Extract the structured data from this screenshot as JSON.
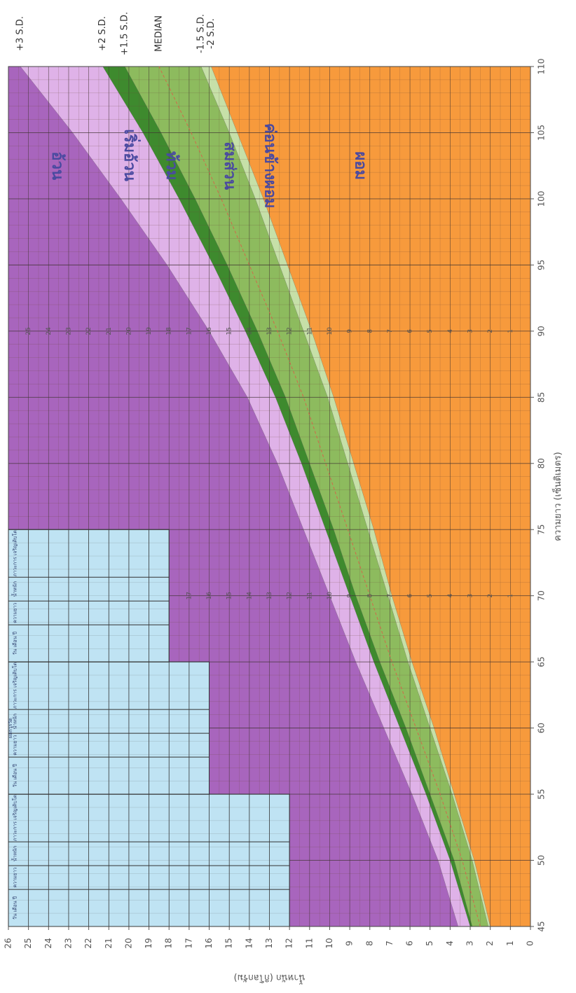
{
  "chart_data": {
    "type": "area",
    "x_range": [
      45,
      110
    ],
    "y_range": [
      0,
      26
    ],
    "xlabel": "ความยาว (เซ็นติเมตร)",
    "ylabel": "น้ำหนัก (กิโลกรัม)",
    "x_ticks": [
      45,
      50,
      55,
      60,
      65,
      70,
      75,
      80,
      85,
      90,
      95,
      100,
      105,
      110
    ],
    "y_ticks": [
      0,
      1,
      2,
      3,
      4,
      5,
      6,
      7,
      8,
      9,
      10,
      11,
      12,
      13,
      14,
      15,
      16,
      17,
      18,
      19,
      20,
      21,
      22,
      23,
      24,
      25,
      26
    ],
    "x": [
      45,
      50,
      55,
      60,
      65,
      70,
      75,
      80,
      85,
      90,
      95,
      100,
      105,
      110
    ],
    "series": [
      {
        "name": "+3 S.D.",
        "values": [
          3.6,
          4.6,
          5.9,
          7.3,
          8.7,
          10.0,
          11.3,
          12.6,
          14.1,
          16.0,
          18.1,
          20.4,
          22.8,
          25.4
        ]
      },
      {
        "name": "+2 S.D.",
        "values": [
          3.0,
          4.0,
          5.2,
          6.5,
          7.8,
          9.0,
          10.2,
          11.4,
          12.7,
          14.2,
          15.8,
          17.5,
          19.3,
          21.3
        ]
      },
      {
        "name": "+1.5 S.D.",
        "values": [
          2.9,
          3.8,
          5.0,
          6.2,
          7.5,
          8.7,
          9.8,
          11.0,
          12.2,
          13.6,
          15.1,
          16.7,
          18.4,
          20.2
        ]
      },
      {
        "name": "MEDIAN",
        "values": [
          2.5,
          3.4,
          4.5,
          5.7,
          6.9,
          8.0,
          9.1,
          10.2,
          11.3,
          12.6,
          14.0,
          15.4,
          16.9,
          18.5
        ]
      },
      {
        "name": "-1.5 S.D.",
        "values": [
          2.1,
          2.9,
          3.9,
          5.0,
          6.1,
          7.1,
          8.1,
          9.1,
          10.1,
          11.3,
          12.5,
          13.7,
          15.0,
          16.4
        ]
      },
      {
        "name": "-2 S.D.",
        "values": [
          2.0,
          2.8,
          3.8,
          4.8,
          5.9,
          6.9,
          7.8,
          8.8,
          9.8,
          10.9,
          12.1,
          13.3,
          14.6,
          15.9
        ]
      }
    ],
    "zones": [
      "อ้วน",
      "เริ่มอ้วน",
      "ท้วม",
      "สมส่วน",
      "ค่อนข้างผอม",
      "ผอม"
    ],
    "colors": {
      "obese": "#a865bd",
      "overweight": "#dfb2e8",
      "plump": "#3e8a2e",
      "normal": "#8dbb5e",
      "underweight": "#c6e0a8",
      "thin": "#f79a3c",
      "median_line": "#d06a4a",
      "table": "#bfe3f3",
      "zone_text": "#4a4aa0"
    },
    "grid": true
  },
  "table": {
    "header": "ผลการวัด",
    "columns": [
      "วัน เดือน ปี",
      "ความยาว",
      "น้ำหนัก",
      "ภาวะการ เจริญเติบโต"
    ]
  },
  "scale_numbers": {
    "left": [
      "1",
      "2",
      "3",
      "4",
      "5",
      "6",
      "7",
      "8",
      "9",
      "10",
      "11",
      "12",
      "13",
      "14",
      "15",
      "16",
      "17"
    ],
    "right": [
      "1",
      "2",
      "3",
      "4",
      "5",
      "6",
      "7",
      "8",
      "9",
      "10",
      "11",
      "12",
      "13",
      "14",
      "15",
      "16",
      "17",
      "18",
      "19",
      "20",
      "21",
      "22",
      "23",
      "24",
      "25"
    ]
  }
}
